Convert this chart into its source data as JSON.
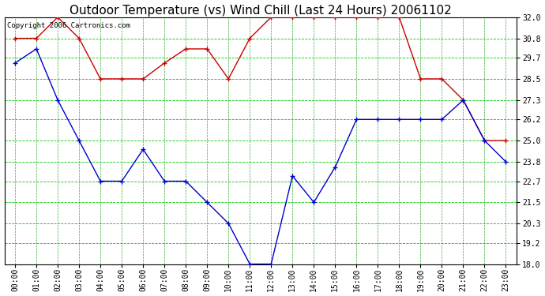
{
  "title": "Outdoor Temperature (vs) Wind Chill (Last 24 Hours) 20061102",
  "copyright": "Copyright 2006 Cartronics.com",
  "hours": [
    "00:00",
    "01:00",
    "02:00",
    "03:00",
    "04:00",
    "05:00",
    "06:00",
    "07:00",
    "08:00",
    "09:00",
    "10:00",
    "11:00",
    "12:00",
    "13:00",
    "14:00",
    "15:00",
    "16:00",
    "17:00",
    "18:00",
    "19:00",
    "20:00",
    "21:00",
    "22:00",
    "23:00"
  ],
  "temp": [
    30.8,
    30.8,
    32.0,
    30.8,
    28.5,
    28.5,
    28.5,
    29.4,
    30.2,
    30.2,
    28.5,
    30.8,
    32.0,
    32.0,
    32.0,
    32.0,
    32.0,
    32.0,
    32.0,
    28.5,
    28.5,
    27.3,
    25.0,
    25.0
  ],
  "wind_chill": [
    29.4,
    30.2,
    27.3,
    25.0,
    22.7,
    22.7,
    24.5,
    22.7,
    22.7,
    21.5,
    20.3,
    18.0,
    18.0,
    23.0,
    21.5,
    23.5,
    26.2,
    26.2,
    26.2,
    26.2,
    26.2,
    27.3,
    25.0,
    23.8
  ],
  "ylim": [
    18.0,
    32.0
  ],
  "yticks": [
    18.0,
    19.2,
    20.3,
    21.5,
    22.7,
    23.8,
    25.0,
    26.2,
    27.3,
    28.5,
    29.7,
    30.8,
    32.0
  ],
  "temp_color": "#cc0000",
  "wind_chill_color": "#0000cc",
  "grid_color_h": "#00cc00",
  "grid_color_v": "#009900",
  "bg_color": "#ffffff",
  "title_fontsize": 11,
  "tick_fontsize": 7
}
